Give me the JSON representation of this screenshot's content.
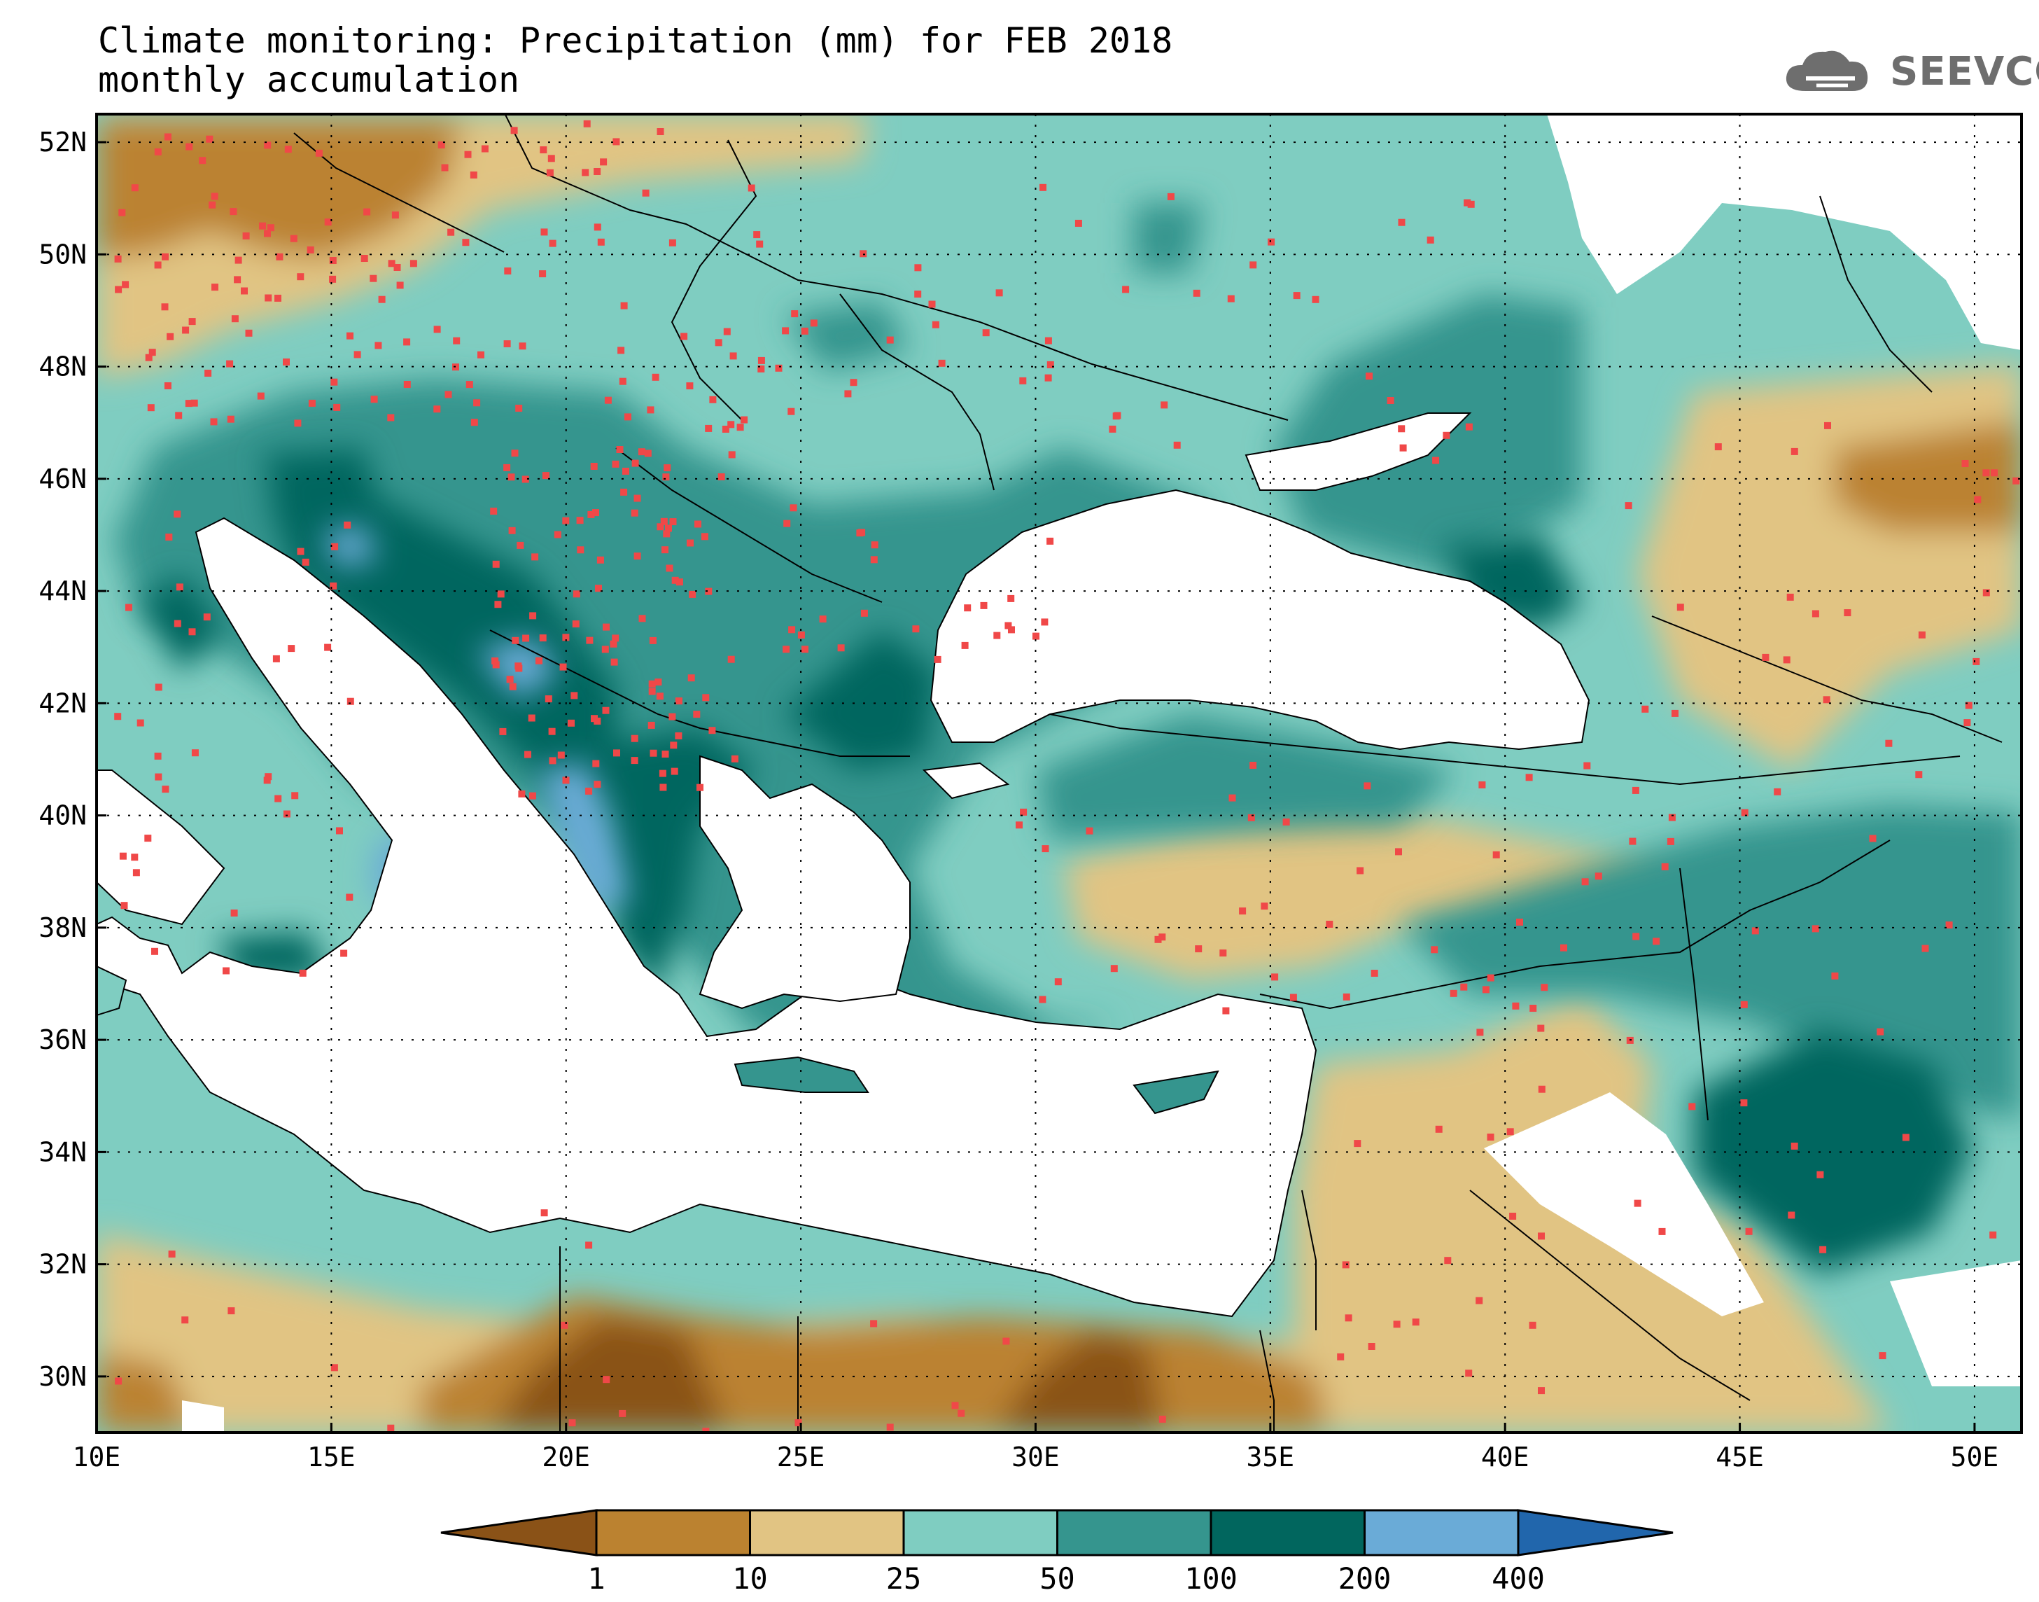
{
  "title": {
    "line1": "Climate monitoring: Precipitation (mm) for FEB 2018",
    "line2": "monthly accumulation"
  },
  "logo": {
    "text": "SEEVCCC",
    "icon": "cloud-icon"
  },
  "axes": {
    "lon_range": [
      10,
      51
    ],
    "lat_range": [
      29,
      52.5
    ],
    "x_ticks": [
      "10E",
      "15E",
      "20E",
      "25E",
      "30E",
      "35E",
      "40E",
      "45E",
      "50E"
    ],
    "y_ticks": [
      "30N",
      "32N",
      "34N",
      "36N",
      "38N",
      "40N",
      "42N",
      "44N",
      "46N",
      "48N",
      "50N",
      "52N"
    ]
  },
  "colorbar": {
    "levels": [
      "1",
      "10",
      "25",
      "50",
      "100",
      "200",
      "400"
    ],
    "colors": [
      "#8a5217",
      "#bb8230",
      "#e1c483",
      "#7fcdc1",
      "#35958e",
      "#01665e",
      "#6aabd7",
      "#2166ac"
    ]
  },
  "features": {
    "station_marker_color": "#f04848",
    "land_background": "#7fcdc1",
    "sea_color": "#ffffff",
    "coastline_color": "#000000"
  }
}
